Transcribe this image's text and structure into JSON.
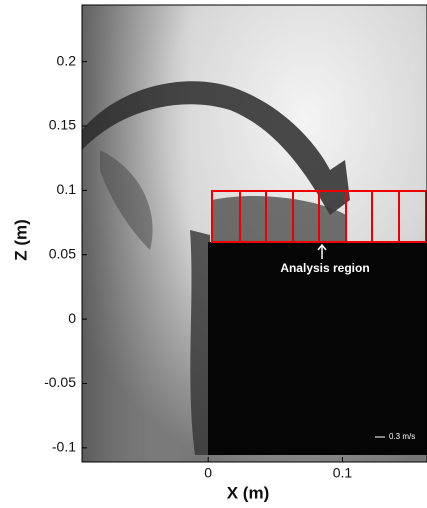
{
  "chart_data": {
    "type": "image",
    "xlabel": "X (m)",
    "ylabel": "Z (m)",
    "xlim": [
      -0.094,
      0.163
    ],
    "ylim": [
      -0.111,
      0.244
    ],
    "xticks": [
      0,
      0.1
    ],
    "yticks": [
      0.2,
      0.15,
      0.1,
      0.05,
      0,
      -0.05,
      -0.1
    ],
    "annotations": [
      "Analysis region",
      "0.3 m/s"
    ]
  }
}
